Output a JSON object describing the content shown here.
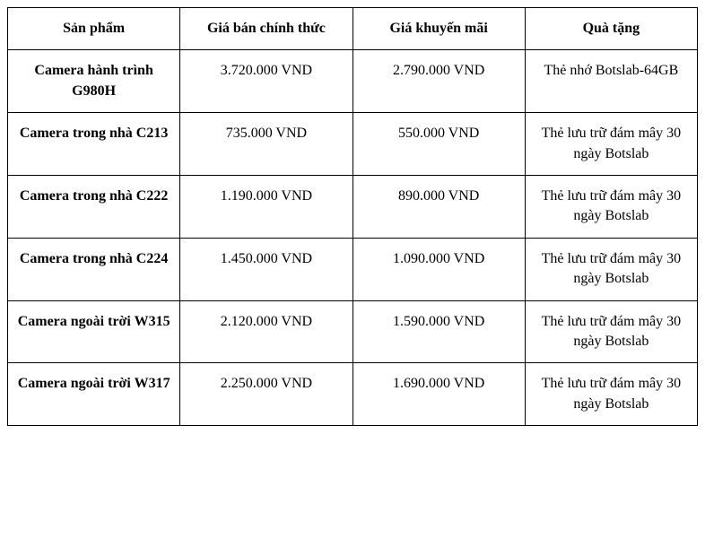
{
  "table": {
    "type": "table",
    "background_color": "#ffffff",
    "border_color": "#000000",
    "font_family": "Times New Roman",
    "header_fontsize": 16,
    "cell_fontsize": 16,
    "columns": [
      {
        "key": "product",
        "label": "Sản phẩm",
        "width_pct": 25,
        "align": "center",
        "header_bold": true
      },
      {
        "key": "official_price",
        "label": "Giá bán chính thức",
        "width_pct": 25,
        "align": "center",
        "header_bold": true
      },
      {
        "key": "promo_price",
        "label": "Giá khuyến mãi",
        "width_pct": 25,
        "align": "center",
        "header_bold": true
      },
      {
        "key": "gift",
        "label": "Quà tặng",
        "width_pct": 25,
        "align": "center",
        "header_bold": true
      }
    ],
    "rows": [
      {
        "product": "Camera hành trình G980H",
        "official_price": "3.720.000 VND",
        "promo_price": "2.790.000 VND",
        "gift": "Thẻ nhớ Botslab-64GB"
      },
      {
        "product": "Camera trong nhà C213",
        "official_price": "735.000 VND",
        "promo_price": "550.000 VND",
        "gift": "Thẻ lưu trữ đám mây 30 ngày Botslab"
      },
      {
        "product": "Camera trong nhà C222",
        "official_price": "1.190.000 VND",
        "promo_price": "890.000 VND",
        "gift": "Thẻ lưu trữ đám mây 30 ngày Botslab"
      },
      {
        "product": "Camera trong nhà C224",
        "official_price": "1.450.000 VND",
        "promo_price": "1.090.000 VND",
        "gift": "Thẻ lưu trữ đám mây 30 ngày Botslab"
      },
      {
        "product": "Camera ngoài trời W315",
        "official_price": "2.120.000 VND",
        "promo_price": "1.590.000 VND",
        "gift": "Thẻ lưu trữ đám mây 30 ngày Botslab"
      },
      {
        "product": "Camera ngoài trời W317",
        "official_price": "2.250.000 VND",
        "promo_price": "1.690.000 VND",
        "gift": "Thẻ lưu trữ đám mây 30 ngày Botslab"
      }
    ]
  }
}
